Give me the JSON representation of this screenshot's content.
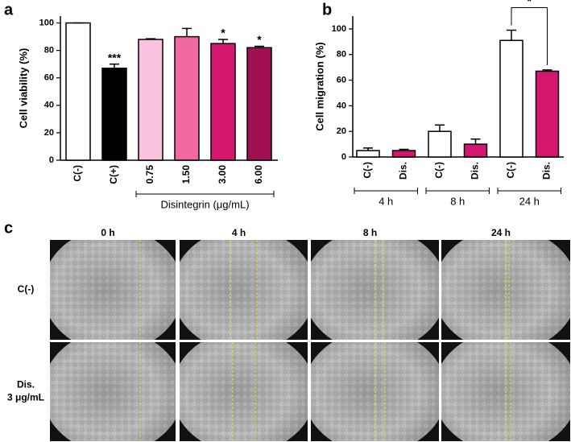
{
  "chart_data": [
    {
      "type": "bar",
      "panel_label": "a",
      "ylabel": "Cell viability (%)",
      "categories": [
        "C(-)",
        "C(+)",
        "0.75",
        "1.50",
        "3.00",
        "6.00"
      ],
      "values": [
        100,
        67,
        88,
        90,
        85,
        82
      ],
      "errors": [
        0,
        3,
        0.5,
        6,
        3,
        1
      ],
      "colors": [
        "#ffffff",
        "#000000",
        "#f9c3dd",
        "#f06a9f",
        "#d4176e",
        "#a30f55"
      ],
      "ylim": [
        0,
        105
      ],
      "yticks": [
        0,
        20,
        40,
        60,
        80,
        100
      ],
      "significance": [
        {
          "from": 1,
          "to": 1,
          "label": "***"
        },
        {
          "from": 4,
          "to": 4,
          "label": "*"
        },
        {
          "from": 5,
          "to": 5,
          "label": "*"
        }
      ],
      "groups": [
        {
          "label": "Disintegrin (μg/mL)",
          "from": 2,
          "to": 5
        }
      ]
    },
    {
      "type": "bar",
      "panel_label": "b",
      "ylabel": "Cell migration (%)",
      "categories": [
        "C(-)",
        "Dis.",
        "C(-)",
        "Dis.",
        "C(-)",
        "Dis."
      ],
      "values": [
        5,
        5,
        20,
        10,
        91,
        67
      ],
      "errors": [
        2,
        1,
        5,
        4,
        8,
        1
      ],
      "colors": [
        "#ffffff",
        "#d4176e",
        "#ffffff",
        "#d4176e",
        "#ffffff",
        "#d4176e"
      ],
      "ylim": [
        0,
        110
      ],
      "yticks": [
        0,
        20,
        40,
        60,
        80,
        100
      ],
      "significance": [
        {
          "from": 4,
          "to": 5,
          "label": "*"
        }
      ],
      "groups": [
        {
          "label": "4 h",
          "from": 0,
          "to": 1
        },
        {
          "label": "8 h",
          "from": 2,
          "to": 3
        },
        {
          "label": "24 h",
          "from": 4,
          "to": 5
        }
      ]
    }
  ],
  "image_panel": {
    "panel_label": "c",
    "columns": [
      "0 h",
      "4 h",
      "8 h",
      "24 h"
    ],
    "rows": [
      [
        "C(-)"
      ],
      [
        "Dis.",
        "3 μg/mL"
      ]
    ]
  }
}
